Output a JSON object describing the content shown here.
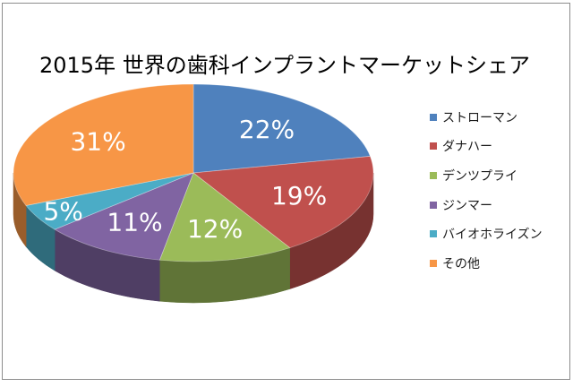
{
  "chart_data": {
    "type": "pie",
    "style": "3d",
    "title": "2015年 世界の歯科インプラントマーケットシェア",
    "categories": [
      "ストローマン",
      "ダナハー",
      "デンツプライ",
      "ジンマー",
      "バイオホライズン",
      "その他"
    ],
    "values": [
      22,
      19,
      12,
      11,
      5,
      31
    ],
    "data_labels": [
      "22%",
      "19%",
      "12%",
      "11%",
      "5%",
      "31%"
    ],
    "colors": [
      "#4F81BD",
      "#C0504D",
      "#9BBB59",
      "#8064A2",
      "#4BACC6",
      "#F79646"
    ],
    "legend": {
      "position": "right"
    }
  }
}
